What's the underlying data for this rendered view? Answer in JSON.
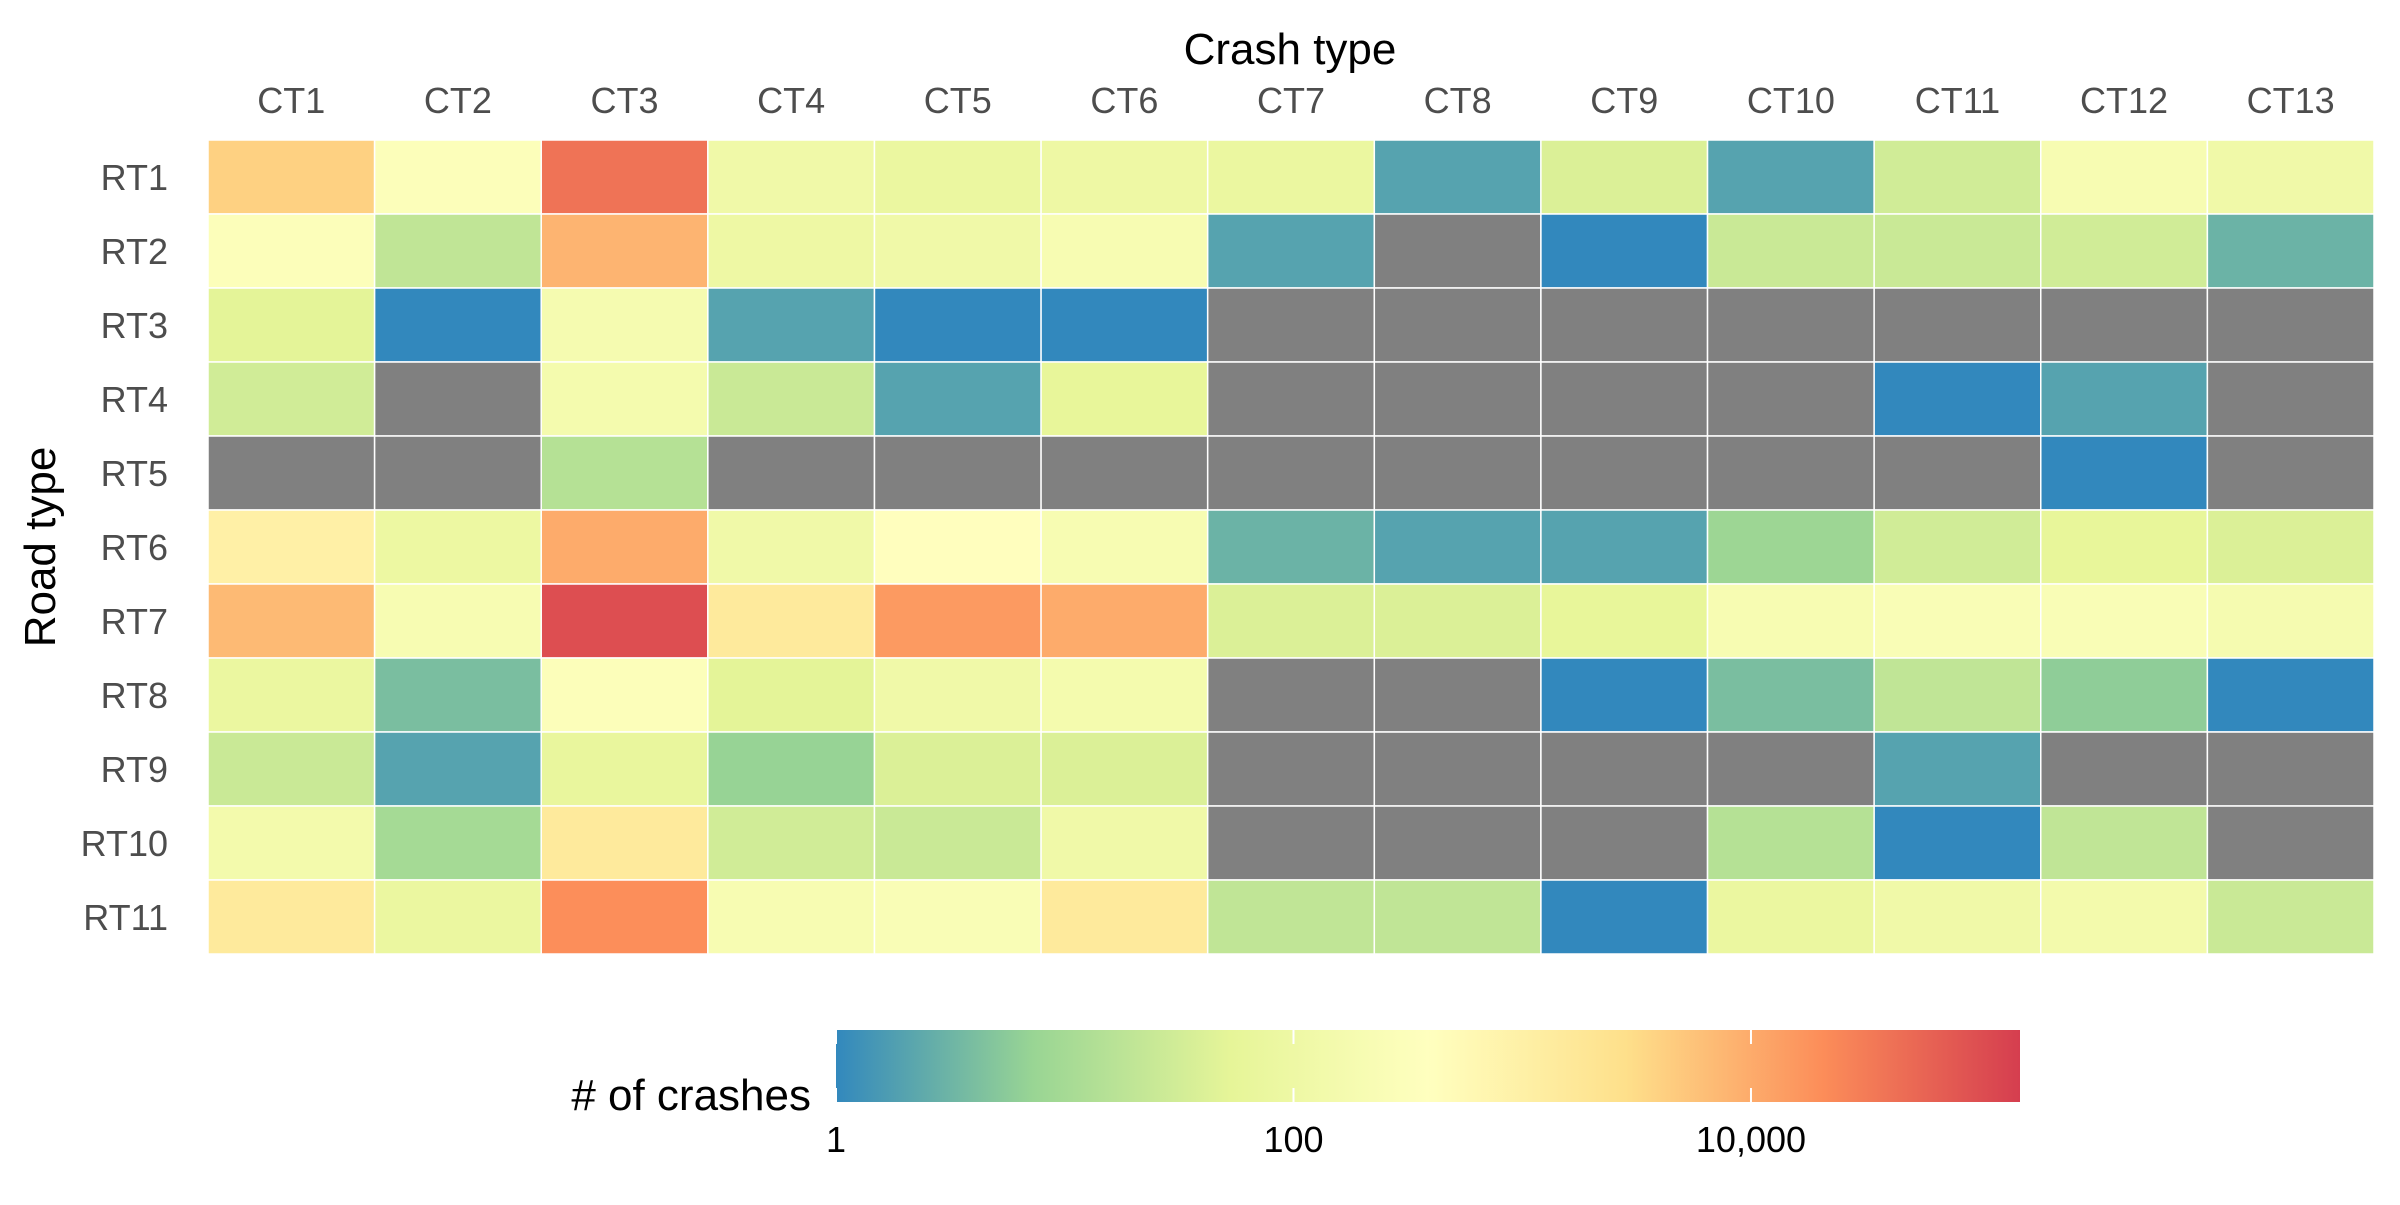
{
  "chart_data": {
    "type": "heatmap",
    "xlabel": "Crash type",
    "ylabel": "Road type",
    "x_categories": [
      "CT1",
      "CT2",
      "CT3",
      "CT4",
      "CT5",
      "CT6",
      "CT7",
      "CT8",
      "CT9",
      "CT10",
      "CT11",
      "CT12",
      "CT13"
    ],
    "y_categories": [
      "RT1",
      "RT2",
      "RT3",
      "RT4",
      "RT5",
      "RT6",
      "RT7",
      "RT8",
      "RT9",
      "RT10",
      "RT11"
    ],
    "values": [
      [
        4000,
        300,
        40000,
        120,
        80,
        100,
        80,
        2,
        40,
        2,
        30,
        200,
        120
      ],
      [
        300,
        20,
        8000,
        100,
        120,
        200,
        2,
        null,
        1,
        25,
        25,
        30,
        3
      ],
      [
        50,
        1,
        180,
        2,
        1,
        1,
        null,
        null,
        null,
        null,
        null,
        null,
        null
      ],
      [
        30,
        null,
        160,
        25,
        2,
        60,
        null,
        null,
        null,
        null,
        1,
        2,
        null
      ],
      [
        null,
        null,
        15,
        null,
        null,
        null,
        null,
        null,
        null,
        null,
        null,
        1,
        null
      ],
      [
        1000,
        90,
        10000,
        120,
        400,
        200,
        3,
        2,
        2,
        8,
        30,
        60,
        40
      ],
      [
        7000,
        200,
        100000,
        1500,
        15000,
        10000,
        40,
        40,
        60,
        200,
        250,
        250,
        180
      ],
      [
        80,
        4,
        300,
        50,
        120,
        160,
        null,
        null,
        1,
        4,
        20,
        6,
        1
      ],
      [
        25,
        2,
        70,
        7,
        40,
        40,
        null,
        null,
        null,
        null,
        2,
        null,
        null
      ],
      [
        150,
        10,
        1500,
        30,
        25,
        120,
        null,
        null,
        null,
        15,
        1,
        20,
        null
      ],
      [
        1500,
        80,
        20000,
        200,
        250,
        1500,
        20,
        20,
        1,
        80,
        120,
        150,
        25
      ]
    ],
    "missing_color": "#808080",
    "colorscale": {
      "type": "log",
      "min": 1,
      "max": 150000,
      "stops": [
        "#3288bd",
        "#99d594",
        "#e6f598",
        "#ffffbf",
        "#fee08b",
        "#fc8d59",
        "#d53e4f"
      ]
    },
    "legend": {
      "title": "# of crashes",
      "position": "bottom",
      "tick_values": [
        1,
        100,
        10000
      ],
      "tick_labels": [
        "1",
        "100",
        "10,000"
      ]
    },
    "grid": false
  }
}
